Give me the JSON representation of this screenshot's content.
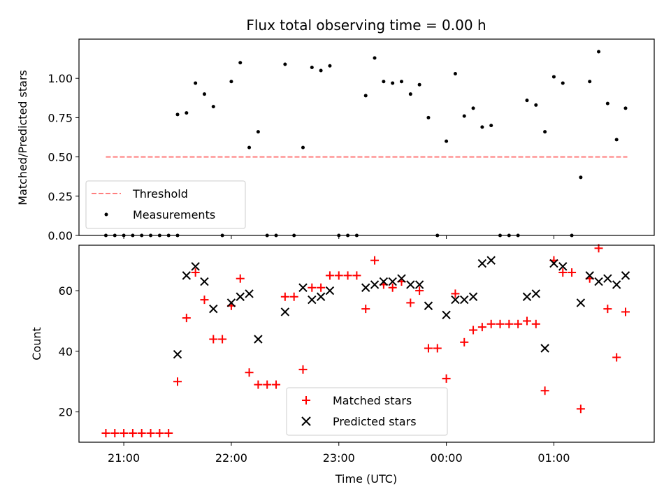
{
  "chart_data": [
    {
      "type": "scatter",
      "title": "Flux total observing time = 0.00 h",
      "xlabel": "",
      "ylabel": "Matched/Predicted stars",
      "xlim": [
        "20:35",
        "01:56"
      ],
      "ylim": [
        0,
        1.25
      ],
      "yticks": [
        "0.00",
        "0.25",
        "0.50",
        "0.75",
        "1.00"
      ],
      "x_ticks": [
        "21:00",
        "22:00",
        "23:00",
        "00:00",
        "01:00"
      ],
      "legend_position": "lower-left",
      "legend": [
        "Threshold",
        "Measurements"
      ],
      "threshold": {
        "name": "Threshold",
        "value": 0.5,
        "x_start": "20:50",
        "x_end": "01:41",
        "color": "#ff7f7f"
      },
      "series": [
        {
          "name": "Measurements",
          "color": "#000000",
          "points": [
            {
              "x": "20:50",
              "y": 0
            },
            {
              "x": "20:55",
              "y": 0
            },
            {
              "x": "21:00",
              "y": 0
            },
            {
              "x": "21:05",
              "y": 0
            },
            {
              "x": "21:10",
              "y": 0
            },
            {
              "x": "21:15",
              "y": 0
            },
            {
              "x": "21:20",
              "y": 0
            },
            {
              "x": "21:25",
              "y": 0
            },
            {
              "x": "21:30",
              "y": 0
            },
            {
              "x": "21:30",
              "y": 0.77
            },
            {
              "x": "21:35",
              "y": 0.78
            },
            {
              "x": "21:40",
              "y": 0.97
            },
            {
              "x": "21:45",
              "y": 0.9
            },
            {
              "x": "21:50",
              "y": 0.82
            },
            {
              "x": "21:55",
              "y": 0
            },
            {
              "x": "22:00",
              "y": 0.98
            },
            {
              "x": "22:05",
              "y": 1.1
            },
            {
              "x": "22:10",
              "y": 0.56
            },
            {
              "x": "22:15",
              "y": 0.66
            },
            {
              "x": "22:20",
              "y": 0
            },
            {
              "x": "22:25",
              "y": 0
            },
            {
              "x": "22:30",
              "y": 1.09
            },
            {
              "x": "22:35",
              "y": 0
            },
            {
              "x": "22:40",
              "y": 0.56
            },
            {
              "x": "22:45",
              "y": 1.07
            },
            {
              "x": "22:50",
              "y": 1.05
            },
            {
              "x": "22:55",
              "y": 1.08
            },
            {
              "x": "23:00",
              "y": 0
            },
            {
              "x": "23:05",
              "y": 0
            },
            {
              "x": "23:10",
              "y": 0
            },
            {
              "x": "23:15",
              "y": 0.89
            },
            {
              "x": "23:20",
              "y": 1.13
            },
            {
              "x": "23:25",
              "y": 0.98
            },
            {
              "x": "23:30",
              "y": 0.97
            },
            {
              "x": "23:35",
              "y": 0.98
            },
            {
              "x": "23:40",
              "y": 0.9
            },
            {
              "x": "23:45",
              "y": 0.96
            },
            {
              "x": "23:50",
              "y": 0.75
            },
            {
              "x": "23:55",
              "y": 0
            },
            {
              "x": "00:00",
              "y": 0.6
            },
            {
              "x": "00:05",
              "y": 1.03
            },
            {
              "x": "00:10",
              "y": 0.76
            },
            {
              "x": "00:15",
              "y": 0.81
            },
            {
              "x": "00:20",
              "y": 0.69
            },
            {
              "x": "00:25",
              "y": 0.7
            },
            {
              "x": "00:30",
              "y": 0
            },
            {
              "x": "00:35",
              "y": 0
            },
            {
              "x": "00:40",
              "y": 0
            },
            {
              "x": "00:45",
              "y": 0.86
            },
            {
              "x": "00:50",
              "y": 0.83
            },
            {
              "x": "00:55",
              "y": 0.66
            },
            {
              "x": "01:00",
              "y": 1.01
            },
            {
              "x": "01:05",
              "y": 0.97
            },
            {
              "x": "01:10",
              "y": 0
            },
            {
              "x": "01:15",
              "y": 0.37
            },
            {
              "x": "01:20",
              "y": 0.98
            },
            {
              "x": "01:25",
              "y": 1.17
            },
            {
              "x": "01:30",
              "y": 0.84
            },
            {
              "x": "01:35",
              "y": 0.61
            },
            {
              "x": "01:40",
              "y": 0.81
            }
          ]
        }
      ]
    },
    {
      "type": "scatter",
      "title": "",
      "xlabel": "Time (UTC)",
      "ylabel": "Count",
      "xlim": [
        "20:35",
        "01:56"
      ],
      "ylim": [
        10,
        75
      ],
      "yticks": [
        "20",
        "40",
        "60"
      ],
      "x_ticks": [
        "21:00",
        "22:00",
        "23:00",
        "00:00",
        "01:00"
      ],
      "legend_position": "lower-center",
      "legend": [
        "Matched stars",
        "Predicted stars"
      ],
      "series": [
        {
          "name": "Matched stars",
          "color": "#ff0000",
          "marker": "plus",
          "points": [
            {
              "x": "20:50",
              "y": 13
            },
            {
              "x": "20:55",
              "y": 13
            },
            {
              "x": "21:00",
              "y": 13
            },
            {
              "x": "21:05",
              "y": 13
            },
            {
              "x": "21:10",
              "y": 13
            },
            {
              "x": "21:15",
              "y": 13
            },
            {
              "x": "21:20",
              "y": 13
            },
            {
              "x": "21:25",
              "y": 13
            },
            {
              "x": "21:30",
              "y": 30
            },
            {
              "x": "21:35",
              "y": 51
            },
            {
              "x": "21:40",
              "y": 66
            },
            {
              "x": "21:45",
              "y": 57
            },
            {
              "x": "21:50",
              "y": 44
            },
            {
              "x": "21:55",
              "y": 44
            },
            {
              "x": "22:00",
              "y": 55
            },
            {
              "x": "22:05",
              "y": 64
            },
            {
              "x": "22:10",
              "y": 33
            },
            {
              "x": "22:15",
              "y": 29
            },
            {
              "x": "22:20",
              "y": 29
            },
            {
              "x": "22:25",
              "y": 29
            },
            {
              "x": "22:30",
              "y": 58
            },
            {
              "x": "22:35",
              "y": 58
            },
            {
              "x": "22:40",
              "y": 34
            },
            {
              "x": "22:45",
              "y": 61
            },
            {
              "x": "22:50",
              "y": 61
            },
            {
              "x": "22:55",
              "y": 65
            },
            {
              "x": "23:00",
              "y": 65
            },
            {
              "x": "23:05",
              "y": 65
            },
            {
              "x": "23:10",
              "y": 65
            },
            {
              "x": "23:15",
              "y": 54
            },
            {
              "x": "23:20",
              "y": 70
            },
            {
              "x": "23:25",
              "y": 62
            },
            {
              "x": "23:30",
              "y": 61
            },
            {
              "x": "23:35",
              "y": 63
            },
            {
              "x": "23:40",
              "y": 56
            },
            {
              "x": "23:45",
              "y": 60
            },
            {
              "x": "23:50",
              "y": 41
            },
            {
              "x": "23:55",
              "y": 41
            },
            {
              "x": "00:00",
              "y": 31
            },
            {
              "x": "00:05",
              "y": 59
            },
            {
              "x": "00:10",
              "y": 43
            },
            {
              "x": "00:15",
              "y": 47
            },
            {
              "x": "00:20",
              "y": 48
            },
            {
              "x": "00:25",
              "y": 49
            },
            {
              "x": "00:30",
              "y": 49
            },
            {
              "x": "00:35",
              "y": 49
            },
            {
              "x": "00:40",
              "y": 49
            },
            {
              "x": "00:45",
              "y": 50
            },
            {
              "x": "00:50",
              "y": 49
            },
            {
              "x": "00:55",
              "y": 27
            },
            {
              "x": "01:00",
              "y": 70
            },
            {
              "x": "01:05",
              "y": 66
            },
            {
              "x": "01:10",
              "y": 66
            },
            {
              "x": "01:15",
              "y": 21
            },
            {
              "x": "01:20",
              "y": 64
            },
            {
              "x": "01:25",
              "y": 74
            },
            {
              "x": "01:30",
              "y": 54
            },
            {
              "x": "01:35",
              "y": 38
            },
            {
              "x": "01:40",
              "y": 53
            }
          ]
        },
        {
          "name": "Predicted stars",
          "color": "#000000",
          "marker": "cross",
          "points": [
            {
              "x": "21:30",
              "y": 39
            },
            {
              "x": "21:35",
              "y": 65
            },
            {
              "x": "21:40",
              "y": 68
            },
            {
              "x": "21:45",
              "y": 63
            },
            {
              "x": "21:50",
              "y": 54
            },
            {
              "x": "22:00",
              "y": 56
            },
            {
              "x": "22:05",
              "y": 58
            },
            {
              "x": "22:10",
              "y": 59
            },
            {
              "x": "22:15",
              "y": 44
            },
            {
              "x": "22:30",
              "y": 53
            },
            {
              "x": "22:40",
              "y": 61
            },
            {
              "x": "22:45",
              "y": 57
            },
            {
              "x": "22:50",
              "y": 58
            },
            {
              "x": "22:55",
              "y": 60
            },
            {
              "x": "23:15",
              "y": 61
            },
            {
              "x": "23:20",
              "y": 62
            },
            {
              "x": "23:25",
              "y": 63
            },
            {
              "x": "23:30",
              "y": 63
            },
            {
              "x": "23:35",
              "y": 64
            },
            {
              "x": "23:40",
              "y": 62
            },
            {
              "x": "23:45",
              "y": 62
            },
            {
              "x": "23:50",
              "y": 55
            },
            {
              "x": "00:00",
              "y": 52
            },
            {
              "x": "00:05",
              "y": 57
            },
            {
              "x": "00:10",
              "y": 57
            },
            {
              "x": "00:15",
              "y": 58
            },
            {
              "x": "00:20",
              "y": 69
            },
            {
              "x": "00:25",
              "y": 70
            },
            {
              "x": "00:45",
              "y": 58
            },
            {
              "x": "00:50",
              "y": 59
            },
            {
              "x": "00:55",
              "y": 41
            },
            {
              "x": "01:00",
              "y": 69
            },
            {
              "x": "01:05",
              "y": 68
            },
            {
              "x": "01:15",
              "y": 56
            },
            {
              "x": "01:20",
              "y": 65
            },
            {
              "x": "01:25",
              "y": 63
            },
            {
              "x": "01:30",
              "y": 64
            },
            {
              "x": "01:35",
              "y": 62
            },
            {
              "x": "01:40",
              "y": 65
            }
          ]
        }
      ]
    }
  ]
}
